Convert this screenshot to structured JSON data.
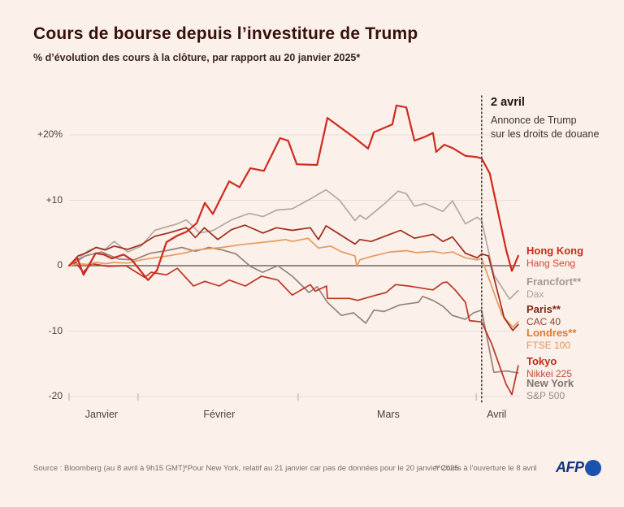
{
  "header": {
    "title": "Cours de bourse depuis l’investiture de Trump",
    "subtitle": "% d’évolution des cours à la clôture, par rapport au 20 janvier 2025*"
  },
  "annotation": {
    "date": "2 avril",
    "line1": "Annonce de Trump",
    "line2": "sur les droits de douane"
  },
  "chart_data": {
    "type": "line",
    "x_axis": {
      "range_description": "20 janvier 2025 au 8 avril 2025, t = 0..100",
      "months": [
        {
          "label": "Janvier",
          "tick_t": 0,
          "label_t": 7.2
        },
        {
          "label": "Février",
          "tick_t": 15.3,
          "label_t": 33.3
        },
        {
          "label": "Mars",
          "tick_t": 50.8,
          "label_t": 70.8
        },
        {
          "label": "Avril",
          "tick_t": 90.3,
          "label_t": 94.8
        }
      ]
    },
    "y_axis": {
      "unit": "%",
      "min": -20,
      "max": 24.5,
      "ticks": [
        {
          "value": 20,
          "label": "+20%"
        },
        {
          "value": 10,
          "label": "+10"
        },
        {
          "value": 0,
          "label": "0"
        },
        {
          "value": -10,
          "label": "-10"
        },
        {
          "value": -20,
          "label": "-20"
        }
      ],
      "grid": true,
      "zero_line_color": "#6f6861",
      "grid_color": "#eedcd4"
    },
    "event_line": {
      "t": 91.5,
      "label": "2 avril",
      "color": "#45403c"
    },
    "series": [
      {
        "name": "New York",
        "index_label": "S&P 500",
        "color": "#97837c",
        "width": 1.7,
        "points": [
          [
            0,
            0
          ],
          [
            2,
            0.8
          ],
          [
            3.6,
            1.5
          ],
          [
            7.2,
            2.1
          ],
          [
            11,
            1.0
          ],
          [
            14.4,
            0.9
          ],
          [
            18,
            1.9
          ],
          [
            21.6,
            2.3
          ],
          [
            25,
            2.8
          ],
          [
            28,
            2.2
          ],
          [
            31,
            2.8
          ],
          [
            34,
            2.4
          ],
          [
            37,
            1.8
          ],
          [
            40.2,
            -0.1
          ],
          [
            42.9,
            -1.0
          ],
          [
            46.3,
            0
          ],
          [
            49.5,
            -1.6
          ],
          [
            53.2,
            -4.1
          ],
          [
            55,
            -3.2
          ],
          [
            57.3,
            -5.6
          ],
          [
            60.4,
            -7.6
          ],
          [
            63.1,
            -7.2
          ],
          [
            65.8,
            -8.8
          ],
          [
            67.6,
            -6.8
          ],
          [
            69.9,
            -7.0
          ],
          [
            73.3,
            -6.0
          ],
          [
            77.5,
            -5.6
          ],
          [
            78.4,
            -4.7
          ],
          [
            80.7,
            -5.3
          ],
          [
            82.9,
            -6.2
          ],
          [
            85,
            -7.6
          ],
          [
            87.9,
            -8.2
          ],
          [
            89.7,
            -7.2
          ],
          [
            91.5,
            -6.8
          ],
          [
            94.2,
            -16.3
          ],
          [
            97,
            -16.1
          ],
          [
            99.6,
            -16.4
          ]
        ]
      },
      {
        "name": "Tokyo",
        "index_label": "Nikkei 225",
        "color": "#bd3423",
        "width": 1.7,
        "points": [
          [
            0,
            0
          ],
          [
            1.5,
            0.5
          ],
          [
            3.1,
            -1.0
          ],
          [
            5,
            0.3
          ],
          [
            8.6,
            -0.1
          ],
          [
            12.6,
            0
          ],
          [
            16.8,
            -1.8
          ],
          [
            18.2,
            -1.0
          ],
          [
            21.6,
            -1.4
          ],
          [
            24,
            -0.4
          ],
          [
            27.6,
            -3.1
          ],
          [
            30.1,
            -2.4
          ],
          [
            33.3,
            -3.1
          ],
          [
            35.5,
            -2.2
          ],
          [
            39.1,
            -3.1
          ],
          [
            42.7,
            -1.6
          ],
          [
            46.3,
            -2.2
          ],
          [
            49.5,
            -4.5
          ],
          [
            53.5,
            -2.9
          ],
          [
            54.6,
            -3.9
          ],
          [
            57.1,
            -3.1
          ],
          [
            57.3,
            -5.0
          ],
          [
            62.2,
            -5.0
          ],
          [
            64,
            -5.3
          ],
          [
            68.1,
            -4.5
          ],
          [
            70.3,
            -4.1
          ],
          [
            72.4,
            -2.9
          ],
          [
            75.3,
            -3.1
          ],
          [
            80.7,
            -3.7
          ],
          [
            82.9,
            -2.6
          ],
          [
            83.8,
            -2.5
          ],
          [
            85.6,
            -3.7
          ],
          [
            87.9,
            -5.6
          ],
          [
            88.8,
            -8.4
          ],
          [
            91.5,
            -8.6
          ],
          [
            93.7,
            -11.9
          ],
          [
            96.9,
            -18.1
          ],
          [
            98.2,
            -19.7
          ],
          [
            99.6,
            -15.3
          ]
        ]
      },
      {
        "name": "Francfort**",
        "index_label": "Dax",
        "color": "#b3aaa5",
        "width": 1.7,
        "points": [
          [
            0,
            0
          ],
          [
            2,
            1.0
          ],
          [
            4,
            2.2
          ],
          [
            6,
            2.8
          ],
          [
            8,
            2.5
          ],
          [
            10,
            3.7
          ],
          [
            13,
            2.1
          ],
          [
            16,
            3.0
          ],
          [
            19,
            5.4
          ],
          [
            24,
            6.4
          ],
          [
            26,
            7.0
          ],
          [
            29,
            5.0
          ],
          [
            32,
            5.4
          ],
          [
            36,
            7.0
          ],
          [
            40,
            8.0
          ],
          [
            43,
            7.5
          ],
          [
            46,
            8.5
          ],
          [
            49.5,
            8.7
          ],
          [
            53.5,
            10.2
          ],
          [
            57,
            11.6
          ],
          [
            60,
            10.0
          ],
          [
            63.4,
            6.9
          ],
          [
            64.5,
            7.7
          ],
          [
            65.8,
            7.1
          ],
          [
            70,
            9.5
          ],
          [
            73,
            11.4
          ],
          [
            74.8,
            11.0
          ],
          [
            76.6,
            9.1
          ],
          [
            78.9,
            9.5
          ],
          [
            82.9,
            8.3
          ],
          [
            85,
            9.9
          ],
          [
            87.9,
            6.4
          ],
          [
            90.5,
            7.4
          ],
          [
            91.5,
            6.9
          ],
          [
            94.2,
            -1.4
          ],
          [
            97.7,
            -5.1
          ],
          [
            99.6,
            -3.8
          ]
        ]
      },
      {
        "name": "Londres**",
        "index_label": "FTSE 100",
        "color": "#e79a5c",
        "width": 1.7,
        "points": [
          [
            0,
            0
          ],
          [
            2,
            0.3
          ],
          [
            4,
            0.2
          ],
          [
            6,
            0.5
          ],
          [
            8,
            0.3
          ],
          [
            10,
            0.5
          ],
          [
            13,
            0.4
          ],
          [
            16,
            0.9
          ],
          [
            19,
            1.2
          ],
          [
            22,
            1.5
          ],
          [
            26,
            2.0
          ],
          [
            28,
            2.4
          ],
          [
            31,
            2.6
          ],
          [
            34,
            2.8
          ],
          [
            38,
            3.2
          ],
          [
            42,
            3.5
          ],
          [
            46,
            3.8
          ],
          [
            48,
            4.0
          ],
          [
            49.5,
            3.7
          ],
          [
            53,
            4.2
          ],
          [
            55.3,
            2.7
          ],
          [
            58,
            3.0
          ],
          [
            60.5,
            2.1
          ],
          [
            63.4,
            1.5
          ],
          [
            63.8,
            -0.1
          ],
          [
            64.5,
            0.9
          ],
          [
            67,
            1.4
          ],
          [
            71.2,
            2.1
          ],
          [
            74.8,
            2.3
          ],
          [
            77,
            2.0
          ],
          [
            80.7,
            2.2
          ],
          [
            82.9,
            1.9
          ],
          [
            85,
            2.1
          ],
          [
            87.9,
            1.2
          ],
          [
            90.5,
            0.9
          ],
          [
            91.5,
            1.1
          ],
          [
            96,
            -7.5
          ],
          [
            98.4,
            -9.4
          ],
          [
            99.6,
            -8.6
          ]
        ]
      },
      {
        "name": "Paris**",
        "index_label": "CAC 40",
        "color": "#9e2d1d",
        "width": 1.7,
        "points": [
          [
            0,
            0
          ],
          [
            2,
            1.5
          ],
          [
            4,
            2.0
          ],
          [
            6,
            2.8
          ],
          [
            8,
            2.4
          ],
          [
            10,
            3.0
          ],
          [
            13,
            2.5
          ],
          [
            16,
            3.2
          ],
          [
            19,
            4.5
          ],
          [
            22,
            5.0
          ],
          [
            26,
            5.8
          ],
          [
            28,
            4.3
          ],
          [
            30,
            5.8
          ],
          [
            33,
            4.0
          ],
          [
            36,
            5.5
          ],
          [
            39,
            6.2
          ],
          [
            41,
            5.6
          ],
          [
            43,
            5.0
          ],
          [
            46,
            5.8
          ],
          [
            49.5,
            5.4
          ],
          [
            53.5,
            5.8
          ],
          [
            55.3,
            4.0
          ],
          [
            57,
            6.1
          ],
          [
            60,
            4.8
          ],
          [
            63.4,
            3.3
          ],
          [
            64.5,
            4.0
          ],
          [
            67,
            3.7
          ],
          [
            70,
            4.5
          ],
          [
            73.5,
            5.4
          ],
          [
            76.6,
            4.2
          ],
          [
            80.7,
            4.8
          ],
          [
            82.9,
            3.7
          ],
          [
            85,
            4.4
          ],
          [
            87.9,
            1.9
          ],
          [
            90.5,
            1.2
          ],
          [
            91.5,
            1.8
          ],
          [
            93,
            1.5
          ],
          [
            96.5,
            -8.0
          ],
          [
            98.4,
            -9.9
          ],
          [
            99.6,
            -9.0
          ]
        ]
      },
      {
        "name": "Hong Kong",
        "index_label": "Hang Seng",
        "color": "#d02a1e",
        "width": 2.2,
        "points": [
          [
            0,
            0
          ],
          [
            1.8,
            1.2
          ],
          [
            3.2,
            -1.4
          ],
          [
            5.9,
            1.9
          ],
          [
            7.7,
            1.7
          ],
          [
            9.5,
            1.1
          ],
          [
            12.1,
            1.7
          ],
          [
            13.9,
            0.9
          ],
          [
            17.5,
            -2.2
          ],
          [
            19.5,
            -0.7
          ],
          [
            21.6,
            3.6
          ],
          [
            24,
            4.6
          ],
          [
            26.1,
            5.2
          ],
          [
            28.3,
            6.5
          ],
          [
            30.1,
            9.6
          ],
          [
            31.9,
            7.9
          ],
          [
            35.5,
            12.9
          ],
          [
            37.8,
            12.0
          ],
          [
            40.2,
            14.9
          ],
          [
            43.2,
            14.5
          ],
          [
            46.8,
            19.5
          ],
          [
            48.6,
            19.1
          ],
          [
            50.5,
            15.5
          ],
          [
            55,
            15.4
          ],
          [
            57.3,
            22.6
          ],
          [
            63.4,
            19.5
          ],
          [
            66.3,
            17.9
          ],
          [
            67.6,
            20.4
          ],
          [
            71.7,
            21.6
          ],
          [
            72.6,
            24.5
          ],
          [
            74.8,
            24.2
          ],
          [
            76.6,
            19.1
          ],
          [
            78.9,
            19.7
          ],
          [
            80.7,
            20.3
          ],
          [
            81.4,
            17.4
          ],
          [
            83.2,
            18.5
          ],
          [
            85,
            18.0
          ],
          [
            87.9,
            16.8
          ],
          [
            90.5,
            16.6
          ],
          [
            91.5,
            16.4
          ],
          [
            93.3,
            14.1
          ],
          [
            96.9,
            2.5
          ],
          [
            98.2,
            -0.8
          ],
          [
            99.6,
            1.5
          ]
        ]
      }
    ]
  },
  "legend": [
    {
      "title": "Hong Kong",
      "subtitle": "Hang Seng",
      "title_color": "#ce2817",
      "subtitle_color": "#cf4733"
    },
    {
      "title": "Francfort**",
      "subtitle": "Dax",
      "title_color": "#a39a96",
      "subtitle_color": "#aba29e"
    },
    {
      "title": "Paris**",
      "subtitle": "CAC 40",
      "title_color": "#7e2614",
      "subtitle_color": "#94412f"
    },
    {
      "title": "Londres**",
      "subtitle": "FTSE 100",
      "title_color": "#dc7b36",
      "subtitle_color": "#e2945c"
    },
    {
      "title": "Tokyo",
      "subtitle": "Nikkei 225",
      "title_color": "#bf2b1a",
      "subtitle_color": "#c84a35"
    },
    {
      "title": "New York",
      "subtitle": "S&P 500",
      "title_color": "#857470",
      "subtitle_color": "#968b86"
    }
  ],
  "footer": {
    "source": "Source : Bloomberg (au 8 avril à 9h15 GMT)",
    "note1": "*Pour New York, relatif au 21 janvier car pas de données pour le 20 janvier 2025",
    "note2": "**Cours à l’ouverture le 8 avril",
    "logo_text": "AFP",
    "logo_text_color": "#15357c",
    "logo_dot_color": "#1b52ad"
  }
}
